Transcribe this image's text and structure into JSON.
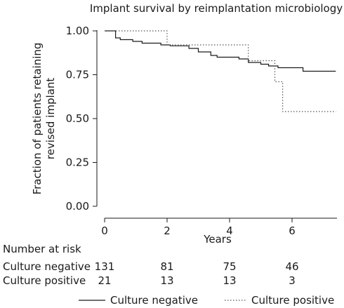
{
  "chart_data": {
    "type": "line",
    "title": "Implant survival by reimplantation microbiology",
    "xlabel": "Years",
    "ylabel": [
      "Fraction of patients retaining",
      "revised implant"
    ],
    "xlim": [
      -0.2,
      7.4
    ],
    "ylim": [
      -0.02,
      1.02
    ],
    "x_ticks": [
      0,
      2,
      4,
      6
    ],
    "x_tick_labels": [
      "0",
      "2",
      "4",
      "6"
    ],
    "y_ticks": [
      0,
      0.25,
      0.5,
      0.75,
      1.0
    ],
    "y_tick_labels": [
      "0.00",
      "0.25",
      "0.50",
      "0.75",
      "1.00"
    ],
    "grid": false,
    "legend_position": "bottom",
    "series": [
      {
        "name": "Culture negative",
        "style": "solid",
        "color": "#1a1a1a",
        "points": [
          [
            0,
            1.0
          ],
          [
            0.35,
            1.0
          ],
          [
            0.35,
            0.96
          ],
          [
            0.5,
            0.96
          ],
          [
            0.5,
            0.95
          ],
          [
            0.9,
            0.95
          ],
          [
            0.9,
            0.94
          ],
          [
            1.2,
            0.94
          ],
          [
            1.2,
            0.93
          ],
          [
            1.8,
            0.93
          ],
          [
            1.8,
            0.92
          ],
          [
            2.1,
            0.92
          ],
          [
            2.1,
            0.915
          ],
          [
            2.7,
            0.915
          ],
          [
            2.7,
            0.9
          ],
          [
            3.0,
            0.9
          ],
          [
            3.0,
            0.88
          ],
          [
            3.4,
            0.88
          ],
          [
            3.4,
            0.86
          ],
          [
            3.6,
            0.86
          ],
          [
            3.6,
            0.85
          ],
          [
            4.3,
            0.85
          ],
          [
            4.3,
            0.84
          ],
          [
            4.6,
            0.84
          ],
          [
            4.6,
            0.82
          ],
          [
            5.0,
            0.82
          ],
          [
            5.0,
            0.81
          ],
          [
            5.25,
            0.81
          ],
          [
            5.25,
            0.8
          ],
          [
            5.55,
            0.8
          ],
          [
            5.55,
            0.79
          ],
          [
            6.35,
            0.79
          ],
          [
            6.35,
            0.77
          ],
          [
            7.4,
            0.77
          ]
        ]
      },
      {
        "name": "Culture positive",
        "style": "dotted",
        "color": "#555555",
        "points": [
          [
            0,
            1.0
          ],
          [
            2.0,
            1.0
          ],
          [
            2.0,
            0.92
          ],
          [
            4.6,
            0.92
          ],
          [
            4.6,
            0.83
          ],
          [
            5.45,
            0.83
          ],
          [
            5.45,
            0.71
          ],
          [
            5.7,
            0.71
          ],
          [
            5.7,
            0.54
          ],
          [
            7.4,
            0.54
          ]
        ]
      }
    ],
    "risk_table": {
      "title": "Number at risk",
      "times": [
        0,
        2,
        4,
        6
      ],
      "rows": [
        {
          "label": "Culture negative",
          "values": [
            131,
            81,
            75,
            46
          ]
        },
        {
          "label": "Culture positive",
          "values": [
            21,
            13,
            13,
            3
          ]
        }
      ]
    }
  }
}
